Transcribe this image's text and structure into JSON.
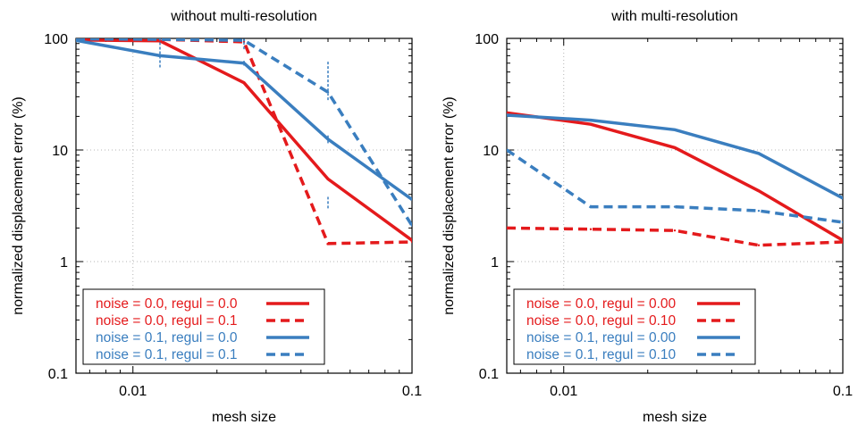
{
  "colors": {
    "red": "#e41a1c",
    "blue": "#3a7ebf"
  },
  "chart_data": [
    {
      "type": "line",
      "title": "without multi-resolution",
      "xlabel": "mesh size",
      "ylabel": "normalized displacement error (%)",
      "xscale": "log",
      "yscale": "log",
      "xlim": [
        0.00625,
        0.1
      ],
      "ylim": [
        0.1,
        100
      ],
      "xticks": [
        {
          "value": 0.01,
          "label": "0.01"
        },
        {
          "value": 0.1,
          "label": "0.1"
        }
      ],
      "yticks": [
        {
          "value": 0.1,
          "label": "0.1"
        },
        {
          "value": 1,
          "label": "1"
        },
        {
          "value": 10,
          "label": "10"
        },
        {
          "value": 100,
          "label": "100"
        }
      ],
      "grid": true,
      "legend": "bottom-left",
      "series": [
        {
          "name": "noise = 0.0, regul = 0.0",
          "color": "red",
          "dash": "solid",
          "x": [
            0.00625,
            0.0125,
            0.025,
            0.05,
            0.1
          ],
          "y": [
            97,
            95,
            40,
            5.5,
            1.55
          ]
        },
        {
          "name": "noise = 0.0, regul = 0.1",
          "color": "red",
          "dash": "dashed",
          "x": [
            0.00625,
            0.0125,
            0.025,
            0.05,
            0.1
          ],
          "y": [
            99,
            98,
            93,
            1.45,
            1.5
          ]
        },
        {
          "name": "noise = 0.1, regul = 0.0",
          "color": "blue",
          "dash": "solid",
          "x": [
            0.00625,
            0.0125,
            0.025,
            0.05,
            0.1
          ],
          "y": [
            96,
            70,
            60,
            12.5,
            3.6
          ],
          "error": [
            [
              0.0125,
              68,
              72
            ],
            [
              0.025,
              57,
              63
            ],
            [
              0.05,
              11.5,
              13.5
            ]
          ]
        },
        {
          "name": "noise = 0.1, regul = 0.1",
          "color": "blue",
          "dash": "dashed",
          "x": [
            0.00625,
            0.0125,
            0.025,
            0.05,
            0.1
          ],
          "y": [
            99,
            98,
            96,
            33,
            2.1
          ],
          "error": [
            [
              0.0125,
              55,
              99
            ],
            [
              0.025,
              80,
              99
            ],
            [
              0.05,
              28,
              63
            ],
            [
              0.05,
              3,
              3.8
            ]
          ]
        }
      ]
    },
    {
      "type": "line",
      "title": "with multi-resolution",
      "xlabel": "mesh size",
      "ylabel": "normalized displacement error (%)",
      "xscale": "log",
      "yscale": "log",
      "xlim": [
        0.00625,
        0.1
      ],
      "ylim": [
        0.1,
        100
      ],
      "xticks": [
        {
          "value": 0.01,
          "label": "0.01"
        },
        {
          "value": 0.1,
          "label": "0.1"
        }
      ],
      "yticks": [
        {
          "value": 0.1,
          "label": "0.1"
        },
        {
          "value": 1,
          "label": "1"
        },
        {
          "value": 10,
          "label": "10"
        },
        {
          "value": 100,
          "label": "100"
        }
      ],
      "grid": true,
      "legend": "bottom-left",
      "series": [
        {
          "name": "noise = 0.0, regul = 0.00",
          "color": "red",
          "dash": "solid",
          "x": [
            0.00625,
            0.0125,
            0.025,
            0.05,
            0.1
          ],
          "y": [
            21.5,
            17,
            10.5,
            4.3,
            1.55
          ]
        },
        {
          "name": "noise = 0.0, regul = 0.10",
          "color": "red",
          "dash": "dashed",
          "x": [
            0.00625,
            0.0125,
            0.025,
            0.05,
            0.1
          ],
          "y": [
            2.0,
            1.95,
            1.9,
            1.4,
            1.5
          ]
        },
        {
          "name": "noise = 0.1, regul = 0.00",
          "color": "blue",
          "dash": "solid",
          "x": [
            0.00625,
            0.0125,
            0.025,
            0.05,
            0.1
          ],
          "y": [
            20.5,
            18.5,
            15.2,
            9.3,
            3.7
          ]
        },
        {
          "name": "noise = 0.1, regul = 0.10",
          "color": "blue",
          "dash": "dashed",
          "x": [
            0.00625,
            0.0125,
            0.025,
            0.05,
            0.1
          ],
          "y": [
            10,
            3.1,
            3.1,
            2.85,
            2.25
          ]
        }
      ]
    }
  ]
}
